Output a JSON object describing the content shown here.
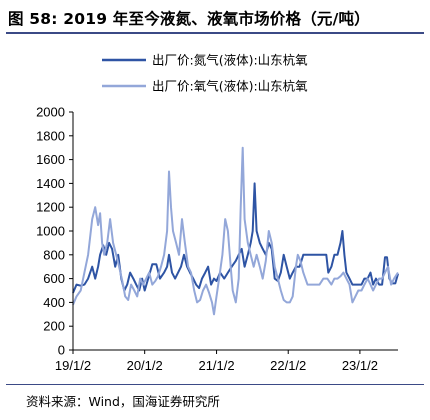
{
  "figure": {
    "title": "图 58:  2019 年至今液氮、液氧市场价格（元/吨）",
    "source": "资料来源：Wind，国海证券研究所"
  },
  "chart_data": {
    "type": "line",
    "title": "",
    "xlabel": "",
    "ylabel": "",
    "ylim": [
      0,
      2000
    ],
    "yticks": [
      0,
      200,
      400,
      600,
      800,
      1000,
      1200,
      1400,
      1600,
      1800,
      2000
    ],
    "x_ticks": [
      "19/1/2",
      "20/1/2",
      "21/1/2",
      "22/1/2",
      "23/1/2"
    ],
    "x_domain": [
      "2019-01-02",
      "2023-07-15"
    ],
    "legend_position": "top",
    "grid": false,
    "series": [
      {
        "name": "出厂价:氮气(液体):山东杭氧",
        "color": "#2e54a4",
        "points": [
          [
            "2019-01-02",
            480
          ],
          [
            "2019-01-20",
            550
          ],
          [
            "2019-02-10",
            540
          ],
          [
            "2019-03-01",
            550
          ],
          [
            "2019-03-20",
            600
          ],
          [
            "2019-04-10",
            700
          ],
          [
            "2019-04-25",
            600
          ],
          [
            "2019-05-10",
            700
          ],
          [
            "2019-05-20",
            800
          ],
          [
            "2019-06-05",
            880
          ],
          [
            "2019-06-20",
            800
          ],
          [
            "2019-07-05",
            900
          ],
          [
            "2019-07-20",
            850
          ],
          [
            "2019-08-05",
            700
          ],
          [
            "2019-08-20",
            800
          ],
          [
            "2019-09-05",
            600
          ],
          [
            "2019-09-20",
            500
          ],
          [
            "2019-10-05",
            550
          ],
          [
            "2019-10-20",
            650
          ],
          [
            "2019-11-05",
            600
          ],
          [
            "2019-11-20",
            550
          ],
          [
            "2019-12-05",
            500
          ],
          [
            "2019-12-20",
            600
          ],
          [
            "2020-01-02",
            500
          ],
          [
            "2020-01-20",
            600
          ],
          [
            "2020-02-10",
            720
          ],
          [
            "2020-03-01",
            720
          ],
          [
            "2020-03-20",
            600
          ],
          [
            "2020-04-10",
            650
          ],
          [
            "2020-04-25",
            700
          ],
          [
            "2020-05-05",
            800
          ],
          [
            "2020-05-20",
            650
          ],
          [
            "2020-06-05",
            600
          ],
          [
            "2020-06-20",
            650
          ],
          [
            "2020-07-05",
            700
          ],
          [
            "2020-07-20",
            800
          ],
          [
            "2020-08-05",
            700
          ],
          [
            "2020-08-20",
            650
          ],
          [
            "2020-09-05",
            600
          ],
          [
            "2020-09-20",
            550
          ],
          [
            "2020-10-05",
            520
          ],
          [
            "2020-10-20",
            600
          ],
          [
            "2020-11-05",
            650
          ],
          [
            "2020-11-20",
            700
          ],
          [
            "2020-12-05",
            550
          ],
          [
            "2020-12-20",
            600
          ],
          [
            "2021-01-02",
            580
          ],
          [
            "2021-01-20",
            650
          ],
          [
            "2021-02-10",
            600
          ],
          [
            "2021-03-01",
            650
          ],
          [
            "2021-03-20",
            700
          ],
          [
            "2021-04-10",
            750
          ],
          [
            "2021-04-25",
            800
          ],
          [
            "2021-05-10",
            850
          ],
          [
            "2021-05-25",
            700
          ],
          [
            "2021-06-10",
            800
          ],
          [
            "2021-06-25",
            900
          ],
          [
            "2021-07-05",
            1000
          ],
          [
            "2021-07-15",
            1400
          ],
          [
            "2021-07-25",
            1000
          ],
          [
            "2021-08-10",
            900
          ],
          [
            "2021-08-25",
            850
          ],
          [
            "2021-09-10",
            800
          ],
          [
            "2021-09-25",
            900
          ],
          [
            "2021-10-10",
            850
          ],
          [
            "2021-10-25",
            600
          ],
          [
            "2021-11-10",
            580
          ],
          [
            "2021-11-25",
            650
          ],
          [
            "2021-12-10",
            800
          ],
          [
            "2021-12-25",
            700
          ],
          [
            "2022-01-10",
            600
          ],
          [
            "2022-01-25",
            650
          ],
          [
            "2022-02-10",
            700
          ],
          [
            "2022-03-01",
            700
          ],
          [
            "2022-03-20",
            800
          ],
          [
            "2022-04-10",
            800
          ],
          [
            "2022-04-30",
            800
          ],
          [
            "2022-05-20",
            800
          ],
          [
            "2022-06-10",
            800
          ],
          [
            "2022-06-30",
            800
          ],
          [
            "2022-07-15",
            800
          ],
          [
            "2022-07-25",
            650
          ],
          [
            "2022-08-10",
            700
          ],
          [
            "2022-08-25",
            800
          ],
          [
            "2022-09-10",
            800
          ],
          [
            "2022-09-25",
            900
          ],
          [
            "2022-10-05",
            1000
          ],
          [
            "2022-10-15",
            800
          ],
          [
            "2022-10-25",
            650
          ],
          [
            "2022-11-10",
            600
          ],
          [
            "2022-11-25",
            550
          ],
          [
            "2022-12-10",
            550
          ],
          [
            "2022-12-25",
            550
          ],
          [
            "2023-01-10",
            550
          ],
          [
            "2023-01-25",
            600
          ],
          [
            "2023-02-10",
            600
          ],
          [
            "2023-02-25",
            650
          ],
          [
            "2023-03-10",
            550
          ],
          [
            "2023-03-25",
            600
          ],
          [
            "2023-04-10",
            550
          ],
          [
            "2023-04-25",
            550
          ],
          [
            "2023-05-10",
            780
          ],
          [
            "2023-05-20",
            780
          ],
          [
            "2023-06-01",
            600
          ],
          [
            "2023-06-15",
            560
          ],
          [
            "2023-07-01",
            560
          ],
          [
            "2023-07-15",
            640
          ]
        ]
      },
      {
        "name": "出厂价:氧气(液体):山东杭氧",
        "color": "#93a7d9",
        "points": [
          [
            "2019-01-02",
            380
          ],
          [
            "2019-01-20",
            450
          ],
          [
            "2019-02-10",
            500
          ],
          [
            "2019-03-01",
            650
          ],
          [
            "2019-03-20",
            800
          ],
          [
            "2019-04-10",
            1100
          ],
          [
            "2019-04-25",
            1200
          ],
          [
            "2019-05-10",
            1050
          ],
          [
            "2019-05-20",
            1150
          ],
          [
            "2019-05-30",
            900
          ],
          [
            "2019-06-10",
            800
          ],
          [
            "2019-06-25",
            900
          ],
          [
            "2019-07-10",
            1100
          ],
          [
            "2019-07-25",
            900
          ],
          [
            "2019-08-10",
            800
          ],
          [
            "2019-08-25",
            700
          ],
          [
            "2019-09-10",
            580
          ],
          [
            "2019-09-25",
            450
          ],
          [
            "2019-10-10",
            420
          ],
          [
            "2019-10-25",
            550
          ],
          [
            "2019-11-10",
            500
          ],
          [
            "2019-11-25",
            450
          ],
          [
            "2019-12-10",
            600
          ],
          [
            "2019-12-25",
            550
          ],
          [
            "2020-01-10",
            600
          ],
          [
            "2020-01-25",
            650
          ],
          [
            "2020-02-10",
            550
          ],
          [
            "2020-02-25",
            580
          ],
          [
            "2020-03-10",
            620
          ],
          [
            "2020-03-25",
            700
          ],
          [
            "2020-04-10",
            800
          ],
          [
            "2020-04-25",
            1000
          ],
          [
            "2020-05-05",
            1500
          ],
          [
            "2020-05-15",
            1200
          ],
          [
            "2020-05-25",
            1000
          ],
          [
            "2020-06-10",
            900
          ],
          [
            "2020-06-25",
            800
          ],
          [
            "2020-07-10",
            1100
          ],
          [
            "2020-07-25",
            900
          ],
          [
            "2020-08-10",
            700
          ],
          [
            "2020-08-25",
            650
          ],
          [
            "2020-09-10",
            500
          ],
          [
            "2020-09-25",
            400
          ],
          [
            "2020-10-10",
            420
          ],
          [
            "2020-10-25",
            500
          ],
          [
            "2020-11-10",
            550
          ],
          [
            "2020-11-25",
            480
          ],
          [
            "2020-12-10",
            400
          ],
          [
            "2020-12-20",
            300
          ],
          [
            "2021-01-02",
            450
          ],
          [
            "2021-01-15",
            600
          ],
          [
            "2021-02-01",
            800
          ],
          [
            "2021-02-15",
            1100
          ],
          [
            "2021-03-01",
            1000
          ],
          [
            "2021-03-15",
            700
          ],
          [
            "2021-03-25",
            500
          ],
          [
            "2021-04-10",
            400
          ],
          [
            "2021-04-25",
            600
          ],
          [
            "2021-05-05",
            1200
          ],
          [
            "2021-05-15",
            1700
          ],
          [
            "2021-05-25",
            1100
          ],
          [
            "2021-06-10",
            900
          ],
          [
            "2021-06-25",
            800
          ],
          [
            "2021-07-10",
            700
          ],
          [
            "2021-07-25",
            800
          ],
          [
            "2021-08-10",
            700
          ],
          [
            "2021-08-25",
            600
          ],
          [
            "2021-09-10",
            750
          ],
          [
            "2021-09-25",
            1000
          ],
          [
            "2021-10-10",
            900
          ],
          [
            "2021-10-25",
            700
          ],
          [
            "2021-11-10",
            600
          ],
          [
            "2021-11-25",
            500
          ],
          [
            "2021-12-10",
            420
          ],
          [
            "2021-12-25",
            400
          ],
          [
            "2022-01-10",
            400
          ],
          [
            "2022-01-25",
            450
          ],
          [
            "2022-02-10",
            700
          ],
          [
            "2022-02-20",
            800
          ],
          [
            "2022-03-05",
            750
          ],
          [
            "2022-03-20",
            650
          ],
          [
            "2022-04-10",
            550
          ],
          [
            "2022-04-30",
            550
          ],
          [
            "2022-05-20",
            550
          ],
          [
            "2022-06-10",
            550
          ],
          [
            "2022-06-30",
            600
          ],
          [
            "2022-07-20",
            600
          ],
          [
            "2022-08-10",
            550
          ],
          [
            "2022-08-25",
            600
          ],
          [
            "2022-09-10",
            600
          ],
          [
            "2022-09-25",
            620
          ],
          [
            "2022-10-10",
            650
          ],
          [
            "2022-10-25",
            600
          ],
          [
            "2022-11-10",
            550
          ],
          [
            "2022-11-25",
            400
          ],
          [
            "2022-12-10",
            450
          ],
          [
            "2022-12-25",
            500
          ],
          [
            "2023-01-10",
            500
          ],
          [
            "2023-01-25",
            550
          ],
          [
            "2023-02-10",
            600
          ],
          [
            "2023-02-25",
            550
          ],
          [
            "2023-03-10",
            500
          ],
          [
            "2023-03-25",
            550
          ],
          [
            "2023-04-10",
            600
          ],
          [
            "2023-04-25",
            600
          ],
          [
            "2023-05-10",
            650
          ],
          [
            "2023-05-25",
            700
          ],
          [
            "2023-06-10",
            550
          ],
          [
            "2023-06-25",
            600
          ],
          [
            "2023-07-15",
            650
          ]
        ]
      }
    ]
  }
}
